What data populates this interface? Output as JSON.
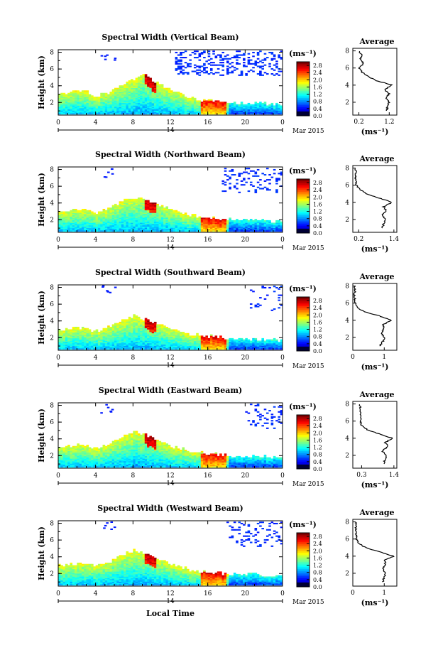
{
  "chart_data": [
    {
      "type": "heatmap",
      "title": "Spectral Width (Vertical Beam)",
      "ylabel": "Height (km)",
      "xlabel": "",
      "x_ticks": [
        "0",
        "4",
        "8",
        "12",
        "16",
        "20",
        "0"
      ],
      "y_ticks": [
        "2",
        "4",
        "6",
        "8"
      ],
      "date_center": "14",
      "date_right": "Mar 2015",
      "xlim": [
        0,
        24
      ],
      "ylim": [
        0.5,
        8.3
      ],
      "colorbar": {
        "unit": "(ms⁻¹)",
        "ticks": [
          "0.0",
          "0.4",
          "0.8",
          "1.2",
          "1.6",
          "2.0",
          "2.4",
          "2.8"
        ],
        "range": [
          0,
          3.0
        ]
      },
      "features": {
        "bl_top_km": [
          2.9,
          3.1,
          3.3,
          3.2,
          2.7,
          3.0,
          3.7,
          4.2,
          4.8,
          5.3,
          4.6,
          4.0,
          3.4,
          2.9,
          2.5,
          2.3,
          2.2,
          2.1,
          2.0,
          1.9,
          1.9,
          1.8,
          1.8,
          1.7,
          1.7
        ],
        "upper_from_h": 12.5,
        "upper_density": 0.55
      },
      "profile": {
        "title": "Average",
        "xlabel": "(ms⁻¹)",
        "x_ticks": [
          "0.2",
          "1.2"
        ],
        "xlim": [
          0,
          1.45
        ],
        "y_ticks": [
          "2",
          "4",
          "6",
          "8"
        ],
        "ylim": [
          0.5,
          8.3
        ],
        "heights": [
          1.0,
          1.5,
          2.0,
          2.5,
          3.0,
          3.5,
          4.0,
          4.5,
          5.0,
          5.5,
          6.0,
          6.5,
          7.0,
          7.5,
          8.0
        ],
        "values": [
          1.1,
          1.15,
          1.2,
          1.1,
          1.2,
          1.05,
          1.3,
          0.8,
          0.5,
          0.3,
          0.2,
          0.35,
          0.25,
          0.3,
          0.2
        ]
      }
    },
    {
      "type": "heatmap",
      "title": "Spectral Width (Northward Beam)",
      "ylabel": "Height (km)",
      "xlabel": "",
      "x_ticks": [
        "0",
        "4",
        "8",
        "12",
        "16",
        "20",
        "0"
      ],
      "y_ticks": [
        "2",
        "4",
        "6",
        "8"
      ],
      "date_center": "14",
      "date_right": "Mar 2015",
      "xlim": [
        0,
        24
      ],
      "ylim": [
        0.5,
        8.3
      ],
      "colorbar": {
        "unit": "(ms⁻¹)",
        "ticks": [
          "0.0",
          "0.4",
          "0.8",
          "1.2",
          "1.6",
          "2.0",
          "2.4",
          "2.8"
        ],
        "range": [
          0,
          3.0
        ]
      },
      "features": {
        "bl_top_km": [
          2.9,
          3.0,
          3.2,
          3.1,
          2.8,
          3.1,
          3.7,
          4.3,
          4.6,
          4.4,
          4.0,
          3.6,
          3.2,
          2.8,
          2.5,
          2.3,
          2.2,
          2.1,
          2.0,
          1.9,
          1.9,
          1.8,
          1.8,
          1.7,
          1.7
        ],
        "upper_from_h": 17.5,
        "upper_density": 0.3
      },
      "profile": {
        "title": "Average",
        "xlabel": "(ms⁻¹)",
        "x_ticks": [
          "0.2",
          "1.4"
        ],
        "xlim": [
          0,
          1.5
        ],
        "y_ticks": [
          "2",
          "4",
          "6",
          "8"
        ],
        "ylim": [
          0.5,
          8.3
        ],
        "heights": [
          1.0,
          1.5,
          2.0,
          2.5,
          3.0,
          3.5,
          4.0,
          4.5,
          5.0,
          5.5,
          6.0,
          6.5,
          7.0,
          7.5,
          8.0
        ],
        "values": [
          1.0,
          1.05,
          1.1,
          1.0,
          1.15,
          1.05,
          1.35,
          0.9,
          0.45,
          0.25,
          0.12,
          0.1,
          0.1,
          0.1,
          0.1
        ]
      }
    },
    {
      "type": "heatmap",
      "title": "Spectral Width (Southward Beam)",
      "ylabel": "Height (km)",
      "xlabel": "",
      "x_ticks": [
        "0",
        "4",
        "8",
        "12",
        "16",
        "20",
        "0"
      ],
      "y_ticks": [
        "2",
        "4",
        "6",
        "8"
      ],
      "date_center": "14",
      "date_right": "Mar 2015",
      "xlim": [
        0,
        24
      ],
      "ylim": [
        0.5,
        8.3
      ],
      "colorbar": {
        "unit": "(ms⁻¹)",
        "ticks": [
          "0.0",
          "0.4",
          "0.8",
          "1.2",
          "1.6",
          "2.0",
          "2.4",
          "2.8"
        ],
        "range": [
          0,
          3.0
        ]
      },
      "features": {
        "bl_top_km": [
          2.8,
          3.0,
          3.1,
          3.0,
          2.7,
          3.0,
          3.6,
          4.1,
          4.5,
          4.2,
          3.8,
          3.4,
          3.0,
          2.7,
          2.4,
          2.2,
          2.1,
          2.0,
          1.9,
          1.9,
          1.8,
          1.8,
          1.7,
          1.7,
          1.6
        ],
        "upper_from_h": 20.5,
        "upper_density": 0.25
      },
      "profile": {
        "title": "Average",
        "xlabel": "(ms⁻¹)",
        "x_ticks": [
          "0",
          "1"
        ],
        "xlim": [
          0,
          1.4
        ],
        "y_ticks": [
          "2",
          "4",
          "6",
          "8"
        ],
        "ylim": [
          0.5,
          8.3
        ],
        "heights": [
          1.0,
          1.5,
          2.0,
          2.5,
          3.0,
          3.5,
          4.0,
          4.5,
          5.0,
          5.5,
          6.0,
          6.5,
          7.0,
          7.5,
          8.0
        ],
        "values": [
          0.85,
          0.95,
          1.0,
          0.9,
          1.0,
          0.95,
          1.25,
          0.85,
          0.35,
          0.15,
          0.08,
          0.06,
          0.06,
          0.06,
          0.06
        ]
      }
    },
    {
      "type": "heatmap",
      "title": "Spectral Width (Eastward Beam)",
      "ylabel": "Height (km)",
      "xlabel": "",
      "x_ticks": [
        "0",
        "4",
        "8",
        "12",
        "16",
        "20",
        "0"
      ],
      "y_ticks": [
        "2",
        "4",
        "6",
        "8"
      ],
      "date_center": "14",
      "date_right": "Mar 2015",
      "xlim": [
        0,
        24
      ],
      "ylim": [
        0.5,
        8.3
      ],
      "colorbar": {
        "unit": "(ms⁻¹)",
        "ticks": [
          "0.0",
          "0.4",
          "0.8",
          "1.2",
          "1.6",
          "2.0",
          "2.4",
          "2.8"
        ],
        "range": [
          0,
          3.0
        ]
      },
      "features": {
        "bl_top_km": [
          2.9,
          3.0,
          3.2,
          3.1,
          2.8,
          3.1,
          3.8,
          4.3,
          4.8,
          4.5,
          4.0,
          3.5,
          3.1,
          2.8,
          2.5,
          2.3,
          2.2,
          2.1,
          2.0,
          1.9,
          1.9,
          1.8,
          1.8,
          1.7,
          1.7
        ],
        "upper_from_h": 20.0,
        "upper_density": 0.3
      },
      "profile": {
        "title": "Average",
        "xlabel": "(ms⁻¹)",
        "x_ticks": [
          "0.3",
          "1.4"
        ],
        "xlim": [
          0,
          1.5
        ],
        "y_ticks": [
          "2",
          "4",
          "6",
          "8"
        ],
        "ylim": [
          0.5,
          8.3
        ],
        "heights": [
          1.0,
          1.5,
          2.0,
          2.5,
          3.0,
          3.5,
          4.0,
          4.5,
          5.0,
          5.5,
          6.0,
          6.5,
          7.0,
          7.5,
          8.0
        ],
        "values": [
          1.05,
          1.1,
          1.15,
          1.0,
          1.2,
          1.1,
          1.35,
          0.9,
          0.5,
          0.3,
          0.25,
          0.3,
          0.25,
          0.25,
          0.25
        ]
      }
    },
    {
      "type": "heatmap",
      "title": "Spectral Width (Westward Beam)",
      "ylabel": "Height (km)",
      "xlabel": "Local Time",
      "x_ticks": [
        "0",
        "4",
        "8",
        "12",
        "16",
        "20",
        "0"
      ],
      "y_ticks": [
        "2",
        "4",
        "6",
        "8"
      ],
      "date_center": "14",
      "date_right": "Mar 2015",
      "xlim": [
        0,
        24
      ],
      "ylim": [
        0.5,
        8.3
      ],
      "colorbar": {
        "unit": "(ms⁻¹)",
        "ticks": [
          "0.0",
          "0.4",
          "0.8",
          "1.2",
          "1.6",
          "2.0",
          "2.4",
          "2.8"
        ],
        "range": [
          0,
          3.0
        ]
      },
      "features": {
        "bl_top_km": [
          2.9,
          3.0,
          3.2,
          3.1,
          2.8,
          3.1,
          3.7,
          4.2,
          4.7,
          4.4,
          3.9,
          3.4,
          3.0,
          2.7,
          2.4,
          2.2,
          2.1,
          2.0,
          1.9,
          1.9,
          1.8,
          1.8,
          1.7,
          1.7,
          1.6
        ],
        "upper_from_h": 18.0,
        "upper_density": 0.3
      },
      "profile": {
        "title": "Average",
        "xlabel": "(ms⁻¹)",
        "x_ticks": [
          "0",
          "1"
        ],
        "xlim": [
          0,
          1.4
        ],
        "y_ticks": [
          "2",
          "4",
          "6",
          "8"
        ],
        "ylim": [
          0.5,
          8.3
        ],
        "heights": [
          1.0,
          1.5,
          2.0,
          2.5,
          3.0,
          3.5,
          4.0,
          4.5,
          5.0,
          5.5,
          6.0,
          6.5,
          7.0,
          7.5,
          8.0
        ],
        "values": [
          0.95,
          1.0,
          1.05,
          0.95,
          1.05,
          1.0,
          1.3,
          0.85,
          0.4,
          0.2,
          0.12,
          0.1,
          0.1,
          0.1,
          0.1
        ]
      }
    }
  ]
}
